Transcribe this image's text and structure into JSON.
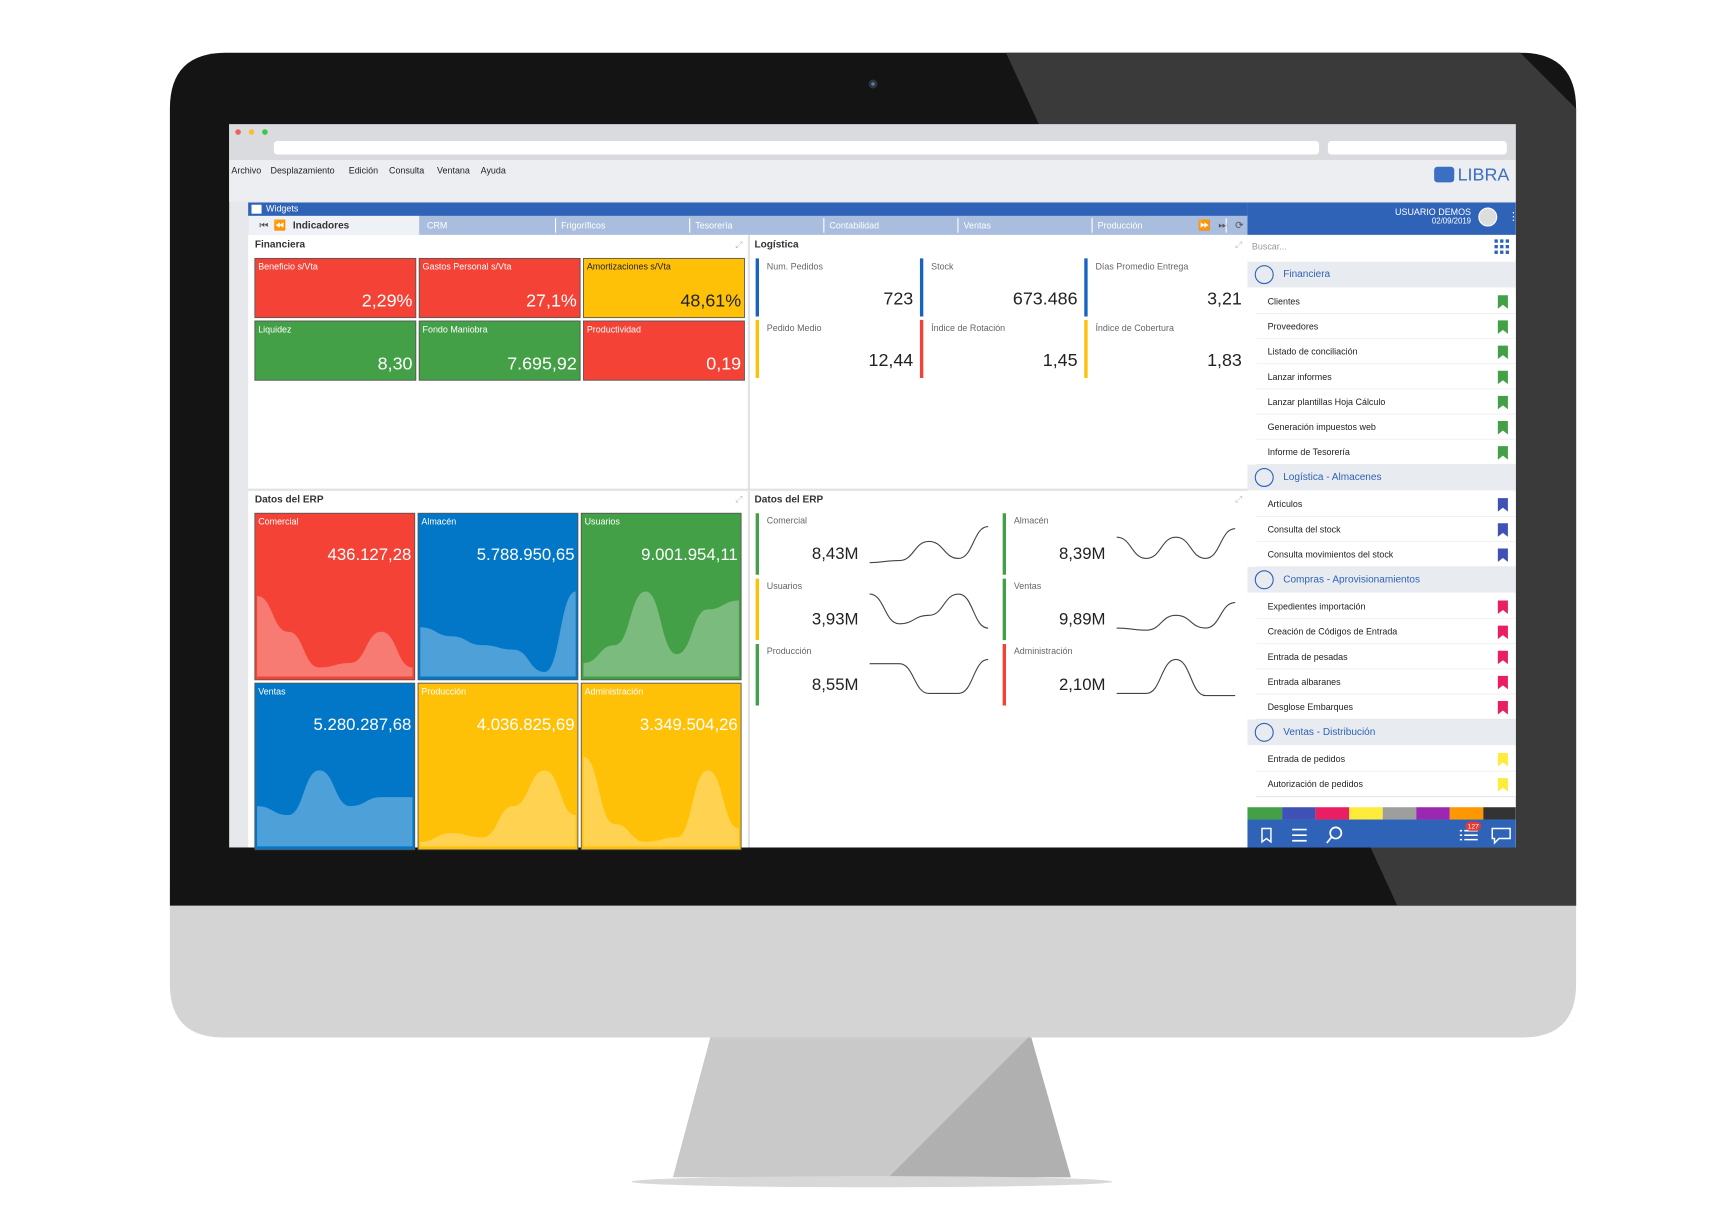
{
  "menu": [
    "Archivo",
    "Desplazamiento",
    "Edición",
    "Consulta",
    "Ventana",
    "Ayuda"
  ],
  "logo": "LIBRA",
  "window_title": "Widgets",
  "active_tab": "Indicadores",
  "tabs": [
    "CRM",
    "Frigoríficos",
    "Tesorería",
    "Contabilidad",
    "Ventas",
    "Producción"
  ],
  "panels": {
    "financiera": {
      "title": "Financiera",
      "tiles": [
        {
          "label": "Beneficio s/Vta",
          "value": "2,29%",
          "color": "#f44336"
        },
        {
          "label": "Gastos Personal s/Vta",
          "value": "27,1%",
          "color": "#f44336"
        },
        {
          "label": "Amortizaciones s/Vta",
          "value": "48,61%",
          "color": "#ffc107"
        },
        {
          "label": "Liquidez",
          "value": "8,30",
          "color": "#43a047"
        },
        {
          "label": "Fondo Maniobra",
          "value": "7.695,92",
          "color": "#43a047"
        },
        {
          "label": "Productividad",
          "value": "0,19",
          "color": "#f44336"
        }
      ]
    },
    "logistica": {
      "title": "Logística",
      "tiles": [
        {
          "label": "Num. Pedidos",
          "value": "723",
          "color": "#1565c0"
        },
        {
          "label": "Stock",
          "value": "673.486",
          "color": "#1565c0"
        },
        {
          "label": "Días Promedio Entrega",
          "value": "3,21",
          "color": "#1565c0"
        },
        {
          "label": "Pedido Medio",
          "value": "12,44",
          "color": "#ffc107"
        },
        {
          "label": "Índice de Rotación",
          "value": "1,45",
          "color": "#f44336"
        },
        {
          "label": "Índice de Cobertura",
          "value": "1,83",
          "color": "#ffc107"
        }
      ]
    },
    "erp_left": {
      "title": "Datos del ERP",
      "tiles": [
        {
          "label": "Comercial",
          "value": "436.127,28",
          "color": "#f44336"
        },
        {
          "label": "Almacén",
          "value": "5.788.950,65",
          "color": "#0277c8"
        },
        {
          "label": "Usuarios",
          "value": "9.001.954,11",
          "color": "#43a047"
        },
        {
          "label": "Ventas",
          "value": "5.280.287,68",
          "color": "#0277c8"
        },
        {
          "label": "Producción",
          "value": "4.036.825,69",
          "color": "#ffc107"
        },
        {
          "label": "Administración",
          "value": "3.349.504,26",
          "color": "#ffc107"
        }
      ]
    },
    "erp_right": {
      "title": "Datos del ERP",
      "tiles": [
        {
          "label": "Comercial",
          "value": "8,43M",
          "color": "#43a047"
        },
        {
          "label": "Almacén",
          "value": "8,39M",
          "color": "#43a047"
        },
        {
          "label": "Usuarios",
          "value": "3,93M",
          "color": "#ffc107"
        },
        {
          "label": "Ventas",
          "value": "9,89M",
          "color": "#43a047"
        },
        {
          "label": "Producción",
          "value": "8,55M",
          "color": "#43a047"
        },
        {
          "label": "Administración",
          "value": "2,10M",
          "color": "#f44336"
        }
      ]
    }
  },
  "user": {
    "name": "USUARIO DEMOS",
    "date": "02/09/2019"
  },
  "search_placeholder": "Buscar...",
  "sections": [
    {
      "title": "Financiera",
      "color": "#43a047",
      "items": [
        "Clientes",
        "Proveedores",
        "Listado de conciliación",
        "Lanzar informes",
        "Lanzar plantillas Hoja Cálculo",
        "Generación impuestos web",
        "Informe de Tesorería"
      ]
    },
    {
      "title": "Logística - Almacenes",
      "color": "#3f51b5",
      "items": [
        "Artículos",
        "Consulta del stock",
        "Consulta movimientos del stock"
      ]
    },
    {
      "title": "Compras - Aprovisionamientos",
      "color": "#e91e63",
      "items": [
        "Expedientes importación",
        "Creación de Códigos de Entrada",
        "Entrada de pesadas",
        "Entrada albaranes",
        "Desglose Embarques"
      ]
    },
    {
      "title": "Ventas - Distribución",
      "color": "#ffeb3b",
      "items": [
        "Entrada de pedidos",
        "Autorización de pedidos"
      ]
    }
  ],
  "badge": "127"
}
